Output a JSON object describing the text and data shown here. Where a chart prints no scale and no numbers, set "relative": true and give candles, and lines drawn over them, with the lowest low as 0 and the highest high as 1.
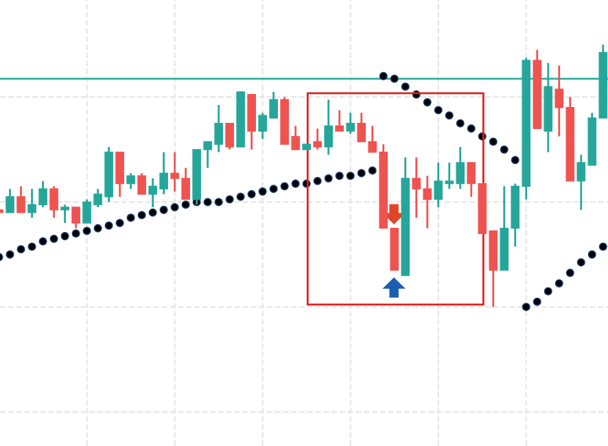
{
  "chart_data": {
    "type": "candlestick",
    "relative": true,
    "grid": true,
    "categories": [
      null,
      null,
      null,
      null,
      null,
      null,
      null,
      null,
      null,
      null,
      null,
      null,
      null,
      null,
      null,
      null,
      null,
      null,
      null,
      null,
      null,
      null,
      null,
      null,
      null,
      null,
      null,
      null,
      null,
      null,
      null,
      null,
      null,
      null,
      null,
      null,
      null,
      null,
      null,
      null,
      null,
      null,
      null,
      null,
      null,
      null,
      null,
      null,
      null,
      null,
      null,
      null,
      null,
      null,
      null,
      null
    ],
    "ohlc": [
      [
        0.37,
        0.37,
        0.36,
        0.36
      ],
      [
        0.36,
        0.45,
        0.36,
        0.42
      ],
      [
        0.42,
        0.46,
        0.36,
        0.36
      ],
      [
        0.36,
        0.45,
        0.34,
        0.39
      ],
      [
        0.39,
        0.48,
        0.38,
        0.45
      ],
      [
        0.45,
        0.46,
        0.34,
        0.37
      ],
      [
        0.37,
        0.39,
        0.32,
        0.38
      ],
      [
        0.38,
        0.38,
        0.3,
        0.32
      ],
      [
        0.32,
        0.41,
        0.32,
        0.4
      ],
      [
        0.39,
        0.45,
        0.38,
        0.43
      ],
      [
        0.42,
        0.61,
        0.4,
        0.59
      ],
      [
        0.59,
        0.59,
        0.42,
        0.47
      ],
      [
        0.47,
        0.51,
        0.45,
        0.5
      ],
      [
        0.5,
        0.51,
        0.43,
        0.43
      ],
      [
        0.43,
        0.49,
        0.38,
        0.46
      ],
      [
        0.45,
        0.59,
        0.43,
        0.51
      ],
      [
        0.51,
        0.59,
        0.44,
        0.49
      ],
      [
        0.49,
        0.53,
        0.41,
        0.41
      ],
      [
        0.41,
        0.6,
        0.39,
        0.6
      ],
      [
        0.6,
        0.63,
        0.53,
        0.63
      ],
      [
        0.62,
        0.77,
        0.59,
        0.7
      ],
      [
        0.7,
        0.7,
        0.6,
        0.61
      ],
      [
        0.61,
        0.82,
        0.61,
        0.82
      ],
      [
        0.81,
        0.81,
        0.6,
        0.67
      ],
      [
        0.67,
        0.74,
        0.64,
        0.73
      ],
      [
        0.72,
        0.82,
        0.72,
        0.79
      ],
      [
        0.79,
        0.8,
        0.62,
        0.62
      ],
      [
        0.65,
        0.69,
        0.6,
        0.6
      ],
      [
        0.6,
        0.62,
        0.6,
        0.62
      ],
      [
        0.63,
        0.68,
        0.6,
        0.61
      ],
      [
        0.61,
        0.79,
        0.58,
        0.69
      ],
      [
        0.69,
        0.75,
        0.67,
        0.67
      ],
      [
        0.67,
        0.74,
        0.66,
        0.7
      ],
      [
        0.7,
        0.74,
        0.63,
        0.63
      ],
      [
        0.63,
        0.69,
        0.59,
        0.59
      ],
      [
        0.59,
        0.62,
        0.3,
        0.3
      ],
      [
        0.3,
        0.3,
        0.14,
        0.14
      ],
      [
        0.12,
        0.57,
        0.12,
        0.49
      ],
      [
        0.49,
        0.57,
        0.34,
        0.45
      ],
      [
        0.45,
        0.5,
        0.3,
        0.41
      ],
      [
        0.41,
        0.55,
        0.38,
        0.48
      ],
      [
        0.47,
        0.55,
        0.45,
        0.48
      ],
      [
        0.47,
        0.61,
        0.45,
        0.55
      ],
      [
        0.55,
        0.55,
        0.42,
        0.47
      ],
      [
        0.47,
        0.47,
        0.28,
        0.28
      ],
      [
        0.29,
        0.29,
        0.0,
        0.14
      ],
      [
        0.14,
        0.46,
        0.14,
        0.3
      ],
      [
        0.3,
        0.47,
        0.23,
        0.46
      ],
      [
        0.46,
        0.95,
        0.41,
        0.94
      ],
      [
        0.94,
        0.98,
        0.68,
        0.68
      ],
      [
        0.67,
        0.93,
        0.59,
        0.84
      ],
      [
        0.83,
        0.92,
        0.65,
        0.76
      ],
      [
        0.76,
        0.8,
        0.48,
        0.48
      ],
      [
        0.48,
        0.58,
        0.37,
        0.55
      ],
      [
        0.54,
        0.74,
        0.54,
        0.72
      ],
      [
        0.72,
        1.0,
        0.72,
        0.97
      ]
    ],
    "colors": [
      "#ef5350",
      "#26a69a",
      "#ef5350",
      "#26a69a",
      "#26a69a",
      "#ef5350",
      "#26a69a",
      "#ef5350",
      "#26a69a",
      "#26a69a",
      "#26a69a",
      "#ef5350",
      "#26a69a",
      "#ef5350",
      "#26a69a",
      "#26a69a",
      "#ef5350",
      "#ef5350",
      "#26a69a",
      "#26a69a",
      "#26a69a",
      "#ef5350",
      "#26a69a",
      "#ef5350",
      "#26a69a",
      "#26a69a",
      "#ef5350",
      "#ef5350",
      "#26a69a",
      "#ef5350",
      "#26a69a",
      "#ef5350",
      "#26a69a",
      "#ef5350",
      "#ef5350",
      "#ef5350",
      "#ef5350",
      "#26a69a",
      "#ef5350",
      "#ef5350",
      "#26a69a",
      "#26a69a",
      "#26a69a",
      "#ef5350",
      "#ef5350",
      "#ef5350",
      "#26a69a",
      "#26a69a",
      "#26a69a",
      "#ef5350",
      "#26a69a",
      "#ef5350",
      "#ef5350",
      "#26a69a",
      "#26a69a",
      "#26a69a"
    ],
    "series": [
      {
        "type": "scatter",
        "color": "#000000",
        "marker": "circle",
        "values": [
          0.19,
          0.2,
          0.22,
          0.23,
          0.25,
          0.26,
          0.27,
          0.28,
          0.29,
          0.3,
          0.31,
          0.32,
          0.34,
          0.35,
          0.36,
          0.37,
          0.38,
          0.39,
          0.4,
          0.4,
          0.4,
          0.41,
          0.42,
          0.43,
          0.44,
          0.45,
          0.46,
          0.47,
          0.47,
          0.48,
          0.49,
          0.5,
          0.5,
          0.51,
          0.52,
          0.88,
          0.87,
          0.84,
          0.81,
          0.78,
          0.75,
          0.73,
          0.7,
          0.68,
          0.65,
          0.63,
          0.6,
          0.56,
          0.0,
          0.02,
          0.06,
          0.09,
          0.13,
          0.17,
          0.2,
          0.23
        ]
      }
    ],
    "ref_lines": [
      {
        "axis": "y",
        "value": 0.87,
        "color": "#26a69a"
      }
    ]
  }
}
